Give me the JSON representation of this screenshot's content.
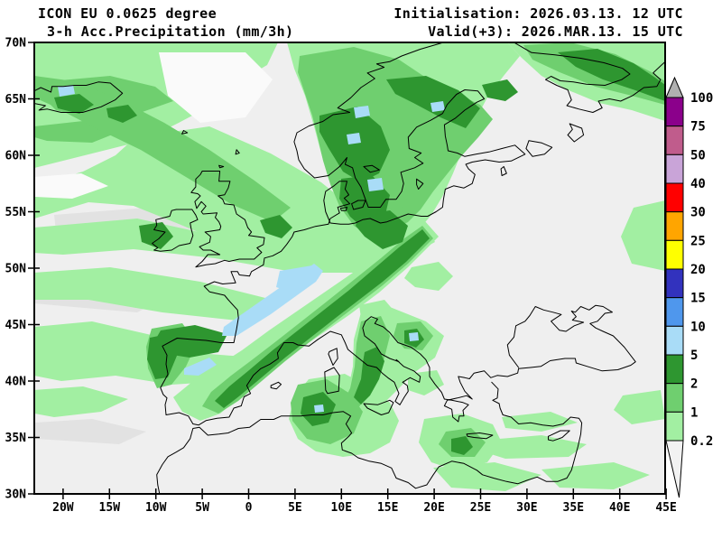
{
  "header": {
    "model": "ICON EU 0.0625 degree",
    "product": "3-h Acc.Precipitation (mm/3h)",
    "init": "Initialisation: 2026.03.13. 12 UTC",
    "valid": "Valid(+3): 2026.MAR.13. 15 UTC"
  },
  "axes": {
    "lat_labels": [
      "70N",
      "65N",
      "60N",
      "55N",
      "50N",
      "45N",
      "40N",
      "35N",
      "30N"
    ],
    "lat_values": [
      70,
      65,
      60,
      55,
      50,
      45,
      40,
      35,
      30
    ],
    "lon_labels": [
      "20W",
      "15W",
      "10W",
      "5W",
      "0",
      "5E",
      "10E",
      "15E",
      "20E",
      "25E",
      "30E",
      "35E",
      "40E",
      "45E"
    ],
    "lon_values": [
      -20,
      -15,
      -10,
      -5,
      0,
      5,
      10,
      15,
      20,
      25,
      30,
      35,
      40,
      45
    ]
  },
  "colorbar": {
    "unit": "mm/3h",
    "labels": [
      "100",
      "75",
      "50",
      "40",
      "30",
      "25",
      "20",
      "15",
      "10",
      "5",
      "2",
      "1",
      "0.2"
    ],
    "segment_colors": [
      "#8B008B",
      "#C05C8C",
      "#C9A4D8",
      "#FF0000",
      "#FFA500",
      "#FFFF00",
      "#3232BE",
      "#4F97ED",
      "#A9DCF7",
      "#2E9630",
      "#6FCF6F",
      "#A2EFA2"
    ],
    "over_color": "#B0B0B0",
    "under_color": "#F2F2F2"
  },
  "palette": {
    "base": "#EFEFEF",
    "trace": "#E2E2E2",
    "white_patch": "#FAFAFA",
    "light": "#A2EFA2",
    "medium": "#6FCF6F",
    "dark": "#2E9630",
    "blue": "#A9DCF7"
  }
}
